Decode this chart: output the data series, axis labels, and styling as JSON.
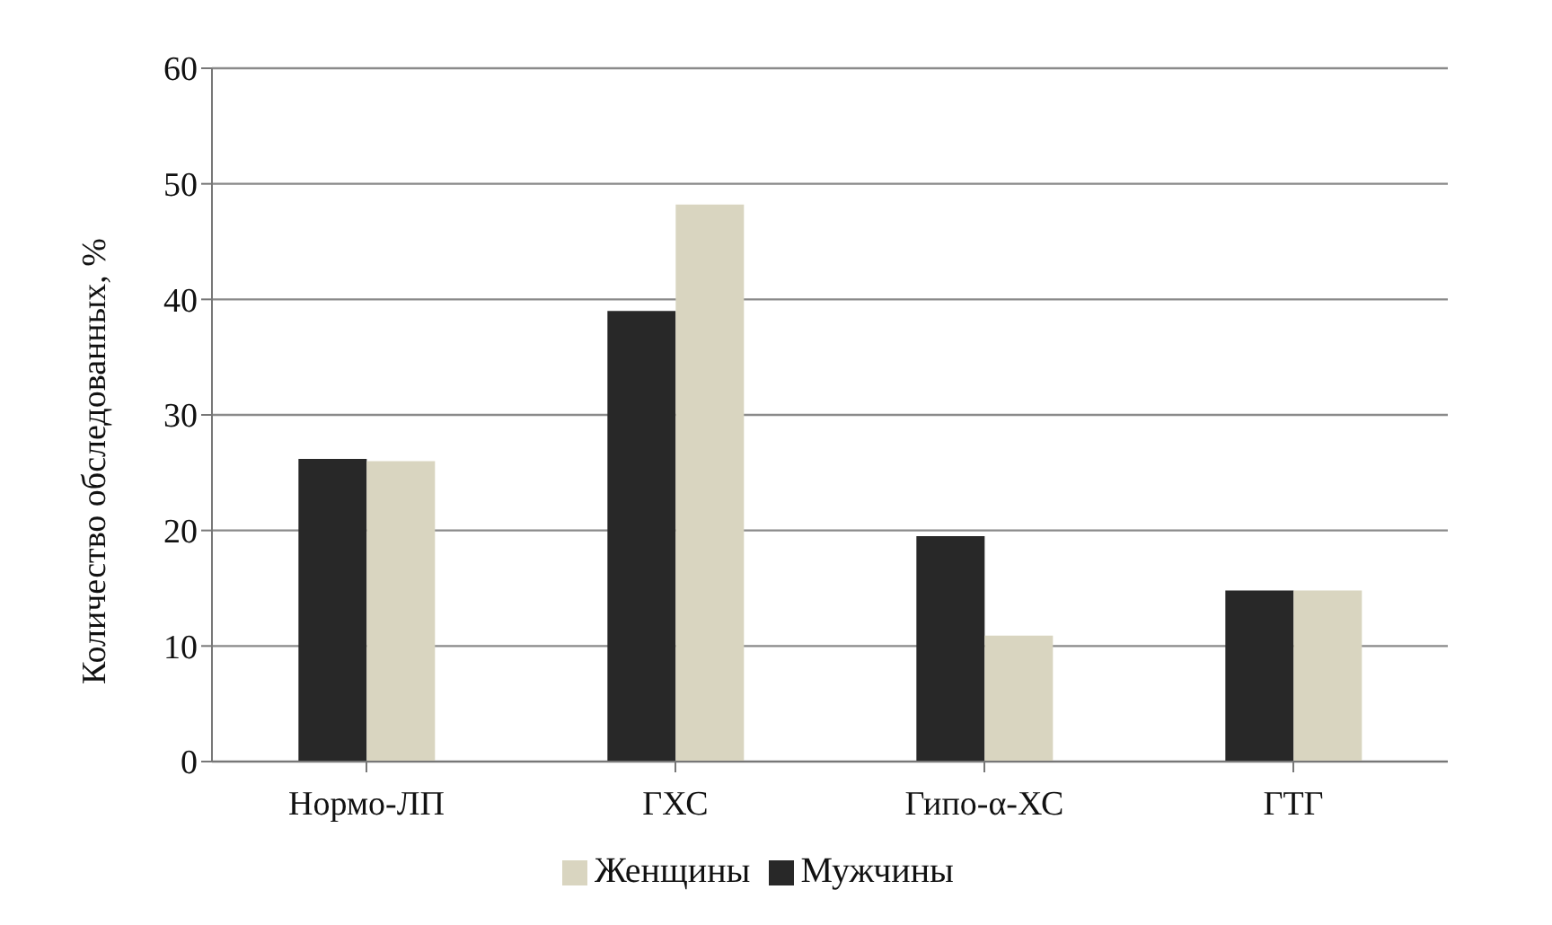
{
  "chart_data": {
    "type": "bar",
    "ylabel": "Количество обследованных, %",
    "categories": [
      "Нормо-ЛП",
      "ГХС",
      "Гипо-α-ХС",
      "ГТГ"
    ],
    "series": [
      {
        "name": "Мужчины",
        "color": "#282828",
        "values": [
          26.2,
          39.0,
          19.5,
          14.8
        ]
      },
      {
        "name": "Женщины",
        "color": "#d9d5c0",
        "values": [
          26.0,
          48.2,
          10.9,
          14.8
        ]
      }
    ],
    "ylim": [
      0,
      60
    ],
    "yticks": [
      0,
      10,
      20,
      30,
      40,
      50,
      60
    ],
    "grid": "y",
    "legend": "bottom"
  }
}
